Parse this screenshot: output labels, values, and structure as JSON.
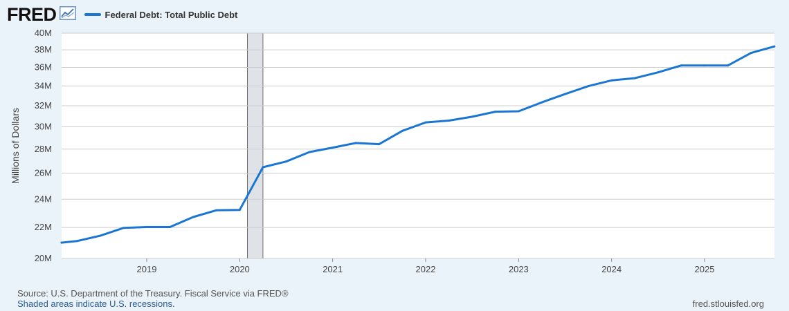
{
  "header": {
    "logo": "FRED",
    "logo_icon": "chart-line-icon",
    "legend_label": "Federal Debt: Total Public Debt"
  },
  "colors": {
    "series": "#1a76d2",
    "recession": "#dfe3e8",
    "grid": "#cccccc",
    "background": "#eaf2fa"
  },
  "chart_data": {
    "type": "line",
    "ylabel": "Millions of Dollars",
    "y_scale": "log",
    "ylim": [
      "20M",
      "40M"
    ],
    "y_ticks": [
      {
        "label": "20M",
        "value": 20000000
      },
      {
        "label": "22M",
        "value": 22000000
      },
      {
        "label": "24M",
        "value": 24000000
      },
      {
        "label": "26M",
        "value": 26000000
      },
      {
        "label": "28M",
        "value": 28000000
      },
      {
        "label": "30M",
        "value": 30000000
      },
      {
        "label": "32M",
        "value": 32000000
      },
      {
        "label": "34M",
        "value": 34000000
      },
      {
        "label": "36M",
        "value": 36000000
      },
      {
        "label": "38M",
        "value": 38000000
      },
      {
        "label": "40M",
        "value": 40000000
      }
    ],
    "x_ticks": [
      "2019",
      "2020",
      "2021",
      "2022",
      "2023",
      "2024",
      "2025"
    ],
    "recessions": [
      {
        "start": "2020-02",
        "end": "2020-04"
      }
    ],
    "series": [
      {
        "name": "Federal Debt: Total Public Debt",
        "points": [
          {
            "x": "2018-01",
            "y": 21000000
          },
          {
            "x": "2018-04",
            "y": 21100000
          },
          {
            "x": "2018-07",
            "y": 21450000
          },
          {
            "x": "2018-10",
            "y": 21970000
          },
          {
            "x": "2019-01",
            "y": 22030000
          },
          {
            "x": "2019-04",
            "y": 22030000
          },
          {
            "x": "2019-07",
            "y": 22720000
          },
          {
            "x": "2019-10",
            "y": 23200000
          },
          {
            "x": "2020-01",
            "y": 23220000
          },
          {
            "x": "2020-04",
            "y": 26480000
          },
          {
            "x": "2020-07",
            "y": 26950000
          },
          {
            "x": "2020-10",
            "y": 27750000
          },
          {
            "x": "2021-01",
            "y": 28130000
          },
          {
            "x": "2021-04",
            "y": 28530000
          },
          {
            "x": "2021-07",
            "y": 28430000
          },
          {
            "x": "2021-10",
            "y": 29620000
          },
          {
            "x": "2022-01",
            "y": 30400000
          },
          {
            "x": "2022-04",
            "y": 30570000
          },
          {
            "x": "2022-07",
            "y": 30930000
          },
          {
            "x": "2022-10",
            "y": 31420000
          },
          {
            "x": "2023-01",
            "y": 31460000
          },
          {
            "x": "2023-04",
            "y": 32330000
          },
          {
            "x": "2023-07",
            "y": 33170000
          },
          {
            "x": "2023-10",
            "y": 33990000
          },
          {
            "x": "2024-01",
            "y": 34590000
          },
          {
            "x": "2024-04",
            "y": 34830000
          },
          {
            "x": "2024-07",
            "y": 35460000
          },
          {
            "x": "2024-10",
            "y": 36220000
          },
          {
            "x": "2025-01",
            "y": 36220000
          },
          {
            "x": "2025-04",
            "y": 36210000
          },
          {
            "x": "2025-07",
            "y": 37640000
          },
          {
            "x": "2025-10",
            "y": 38400000
          }
        ]
      }
    ],
    "grid": true,
    "legend_position": "top-left"
  },
  "footer": {
    "source": "Source: U.S. Department of the Treasury. Fiscal Service via FRED®",
    "recession_note": "Shaded areas indicate U.S. recessions.",
    "site": "fred.stlouisfed.org"
  }
}
